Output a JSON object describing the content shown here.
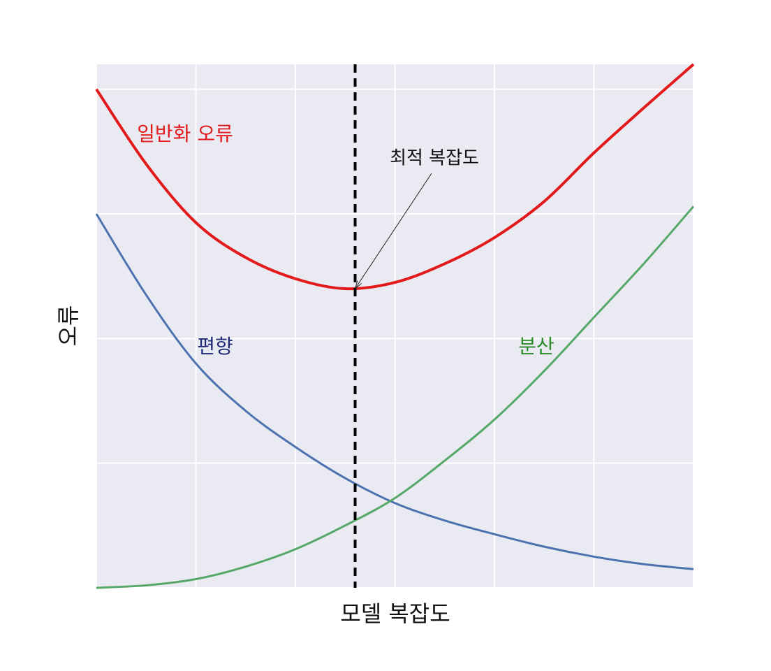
{
  "chart_data": {
    "type": "line",
    "x_label": "모델 복잡도",
    "y_label": "오류",
    "x": [
      0,
      0.5,
      1,
      1.5,
      2,
      2.5,
      3,
      3.5,
      4,
      4.5,
      5,
      5.5,
      6
    ],
    "series": [
      {
        "name": "일반화 오류",
        "color": "#e31a1c",
        "values": [
          4.0,
          3.4,
          2.93,
          2.65,
          2.48,
          2.4,
          2.45,
          2.6,
          2.81,
          3.1,
          3.49,
          3.85,
          4.2
        ]
      },
      {
        "name": "편향",
        "color": "#4c72b0",
        "values": [
          3.0,
          2.35,
          1.8,
          1.42,
          1.13,
          0.88,
          0.68,
          0.54,
          0.43,
          0.33,
          0.25,
          0.19,
          0.15
        ]
      },
      {
        "name": "분산",
        "color": "#55a868",
        "values": [
          0,
          0.02,
          0.07,
          0.17,
          0.31,
          0.5,
          0.72,
          1.02,
          1.35,
          1.74,
          2.17,
          2.6,
          3.06
        ]
      }
    ],
    "annotation": {
      "text": "최적 복잡도",
      "x": 2.6,
      "y": 2.4
    },
    "xlim": [
      0,
      6
    ],
    "ylim": [
      0,
      4.2
    ],
    "xticks": [
      0,
      1,
      2,
      3,
      4,
      5,
      6
    ],
    "yticks": [
      0,
      1,
      2,
      3,
      4
    ],
    "grid": true
  }
}
